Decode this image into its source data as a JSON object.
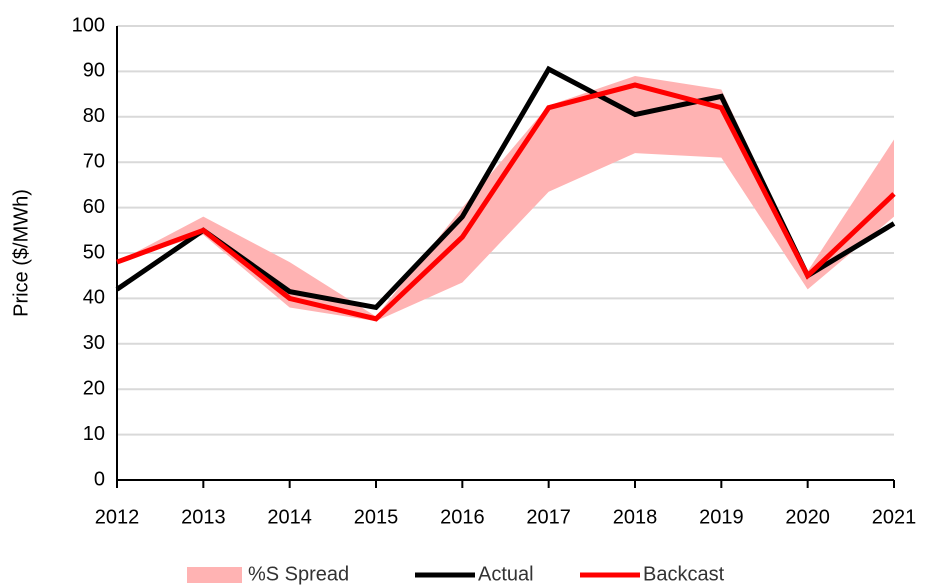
{
  "chart_data": {
    "type": "line",
    "y_label": "Price ($/MWh)",
    "x": [
      2012,
      2013,
      2014,
      2015,
      2016,
      2017,
      2018,
      2019,
      2020,
      2021
    ],
    "xlim": [
      2012,
      2021
    ],
    "xticks": [
      2012,
      2013,
      2014,
      2015,
      2016,
      2017,
      2018,
      2019,
      2020,
      2021
    ],
    "ylim": [
      0,
      100
    ],
    "yticks": [
      0,
      10,
      20,
      30,
      40,
      50,
      60,
      70,
      80,
      90,
      100
    ],
    "grid": true,
    "legend": "bottom",
    "band": {
      "name": "%S Spread",
      "color": "#ffb3b3",
      "low": [
        48,
        54,
        38,
        35,
        43.5,
        63.5,
        72,
        71,
        42,
        58
      ],
      "high": [
        48,
        58,
        48,
        36,
        60,
        82.5,
        89,
        86,
        46,
        75
      ]
    },
    "series": [
      {
        "name": "Actual",
        "color": "#000000",
        "values": [
          42,
          55,
          41.5,
          38,
          58,
          90.5,
          80.5,
          84.5,
          45,
          56.5
        ]
      },
      {
        "name": "Backcast",
        "color": "#ff0000",
        "values": [
          48,
          55,
          40,
          35.5,
          53.5,
          82,
          87,
          82,
          45,
          63
        ]
      }
    ]
  }
}
